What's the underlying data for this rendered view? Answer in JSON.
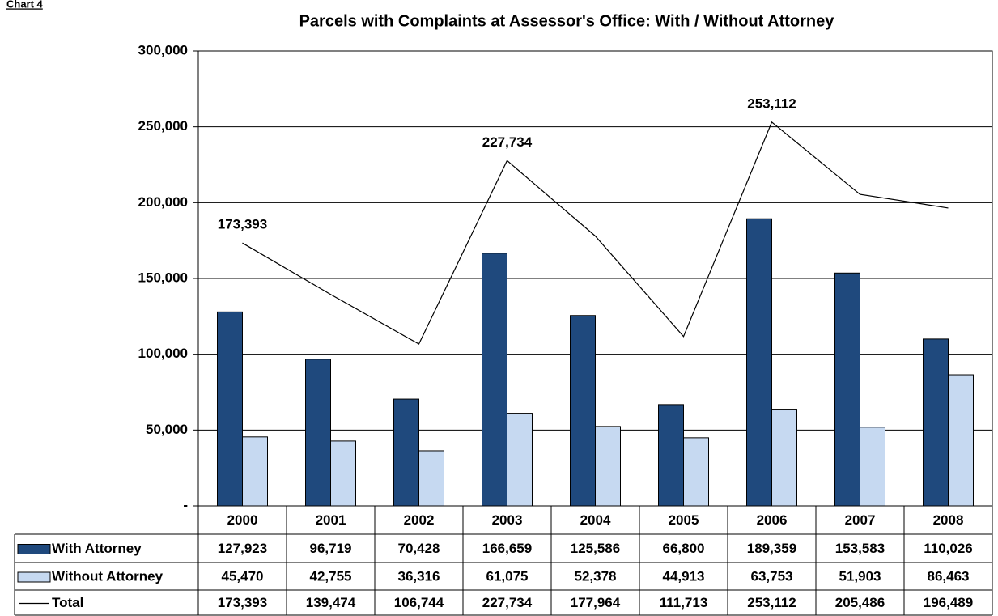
{
  "chart_data": {
    "type": "bar",
    "label": "Chart 4",
    "title": "Parcels with Complaints at Assessor's Office: With / Without Attorney",
    "categories": [
      "2000",
      "2001",
      "2002",
      "2003",
      "2004",
      "2005",
      "2006",
      "2007",
      "2008"
    ],
    "series": [
      {
        "name": "With Attorney",
        "type": "bar",
        "color": "#1f497d",
        "values": [
          127923,
          96719,
          70428,
          166659,
          125586,
          66800,
          189359,
          153583,
          110026
        ],
        "value_labels": [
          "127,923",
          "96,719",
          "70,428",
          "166,659",
          "125,586",
          "66,800",
          "189,359",
          "153,583",
          "110,026"
        ]
      },
      {
        "name": "Without Attorney",
        "type": "bar",
        "color": "#c6d9f1",
        "values": [
          45470,
          42755,
          36316,
          61075,
          52378,
          44913,
          63753,
          51903,
          86463
        ],
        "value_labels": [
          "45,470",
          "42,755",
          "36,316",
          "61,075",
          "52,378",
          "44,913",
          "63,753",
          "51,903",
          "86,463"
        ]
      },
      {
        "name": "Total",
        "type": "line",
        "color": "#000000",
        "values": [
          173393,
          139474,
          106744,
          227734,
          177964,
          111713,
          253112,
          205486,
          196489
        ],
        "value_labels": [
          "173,393",
          "139,474",
          "106,744",
          "227,734",
          "177,964",
          "111,713",
          "253,112",
          "205,486",
          "196,489"
        ],
        "labeled_points": [
          0,
          3,
          6
        ]
      }
    ],
    "ylim": [
      0,
      300000
    ],
    "yticks": [
      {
        "value": 0,
        "label": "-"
      },
      {
        "value": 50000,
        "label": "50,000"
      },
      {
        "value": 100000,
        "label": "100,000"
      },
      {
        "value": 150000,
        "label": "150,000"
      },
      {
        "value": 200000,
        "label": "200,000"
      },
      {
        "value": 250000,
        "label": "250,000"
      },
      {
        "value": 300000,
        "label": "300,000"
      }
    ],
    "grid": true,
    "data_table": true
  }
}
